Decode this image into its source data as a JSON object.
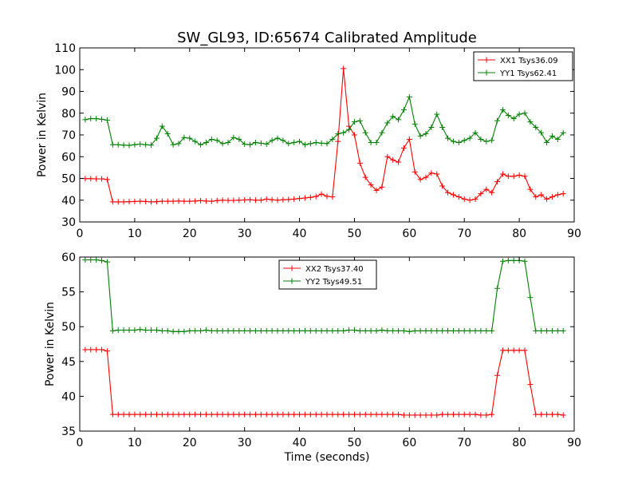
{
  "title": "SW_GL93, ID:65674 Calibrated Amplitude",
  "colors": {
    "red": "#ff0000",
    "green": "#008000"
  },
  "chart_data": [
    {
      "type": "line",
      "xlabel": "",
      "ylabel": "Power in Kelvin",
      "xlim": [
        0,
        90
      ],
      "ylim": [
        30,
        110
      ],
      "xticks": [
        0,
        10,
        20,
        30,
        40,
        50,
        60,
        70,
        80,
        90
      ],
      "yticks": [
        30,
        40,
        50,
        60,
        70,
        80,
        90,
        100,
        110
      ],
      "grid": false,
      "legend_position": "top-right",
      "x": [
        1,
        2,
        3,
        4,
        5,
        6,
        7,
        8,
        9,
        10,
        11,
        12,
        13,
        14,
        15,
        16,
        17,
        18,
        19,
        20,
        21,
        22,
        23,
        24,
        25,
        26,
        27,
        28,
        29,
        30,
        31,
        32,
        33,
        34,
        35,
        36,
        37,
        38,
        39,
        40,
        41,
        42,
        43,
        44,
        45,
        46,
        47,
        48,
        49,
        50,
        51,
        52,
        53,
        54,
        55,
        56,
        57,
        58,
        59,
        60,
        61,
        62,
        63,
        64,
        65,
        66,
        67,
        68,
        69,
        70,
        71,
        72,
        73,
        74,
        75,
        76,
        77,
        78,
        79,
        80,
        81,
        82,
        83,
        84,
        85,
        86,
        87,
        88
      ],
      "series": [
        {
          "name": "XX1 Tsys36.09",
          "color": "#ff0000",
          "values": [
            49.9,
            49.9,
            49.8,
            49.8,
            49.5,
            39.2,
            39.2,
            39.2,
            39.3,
            39.4,
            39.5,
            39.4,
            39.2,
            39.3,
            39.5,
            39.5,
            39.5,
            39.6,
            39.5,
            39.5,
            39.6,
            39.8,
            39.6,
            39.5,
            39.8,
            40.0,
            39.9,
            39.9,
            40.0,
            40.1,
            40.2,
            40.0,
            40.0,
            40.5,
            40.2,
            40.0,
            40.2,
            40.3,
            40.5,
            40.8,
            41.0,
            41.3,
            41.7,
            42.8,
            41.8,
            41.5,
            67.0,
            100.5,
            74.0,
            70.0,
            57.0,
            50.5,
            47.0,
            44.5,
            46.0,
            60.0,
            58.5,
            57.5,
            64.0,
            68.0,
            53.0,
            49.5,
            50.5,
            52.5,
            52.0,
            46.5,
            43.5,
            42.5,
            41.5,
            40.5,
            40.0,
            40.5,
            43.0,
            45.0,
            43.5,
            48.5,
            52.0,
            51.0,
            51.0,
            51.5,
            51.0,
            45.0,
            41.5,
            42.5,
            40.5,
            41.5,
            42.5,
            43.0
          ]
        },
        {
          "name": "YY1 Tsys62.41",
          "color": "#008000",
          "values": [
            77.0,
            77.5,
            77.5,
            77.2,
            76.8,
            65.5,
            65.5,
            65.3,
            65.2,
            65.5,
            65.8,
            65.5,
            65.3,
            68.5,
            74.0,
            70.5,
            65.5,
            66.0,
            68.8,
            68.5,
            67.0,
            65.5,
            66.5,
            68.0,
            67.5,
            66.0,
            66.5,
            68.8,
            68.0,
            65.8,
            65.5,
            66.5,
            66.2,
            65.8,
            67.5,
            68.5,
            67.5,
            66.0,
            66.5,
            67.0,
            65.5,
            66.0,
            66.5,
            66.2,
            66.0,
            68.0,
            70.5,
            71.0,
            72.5,
            76.0,
            76.5,
            71.0,
            66.5,
            66.5,
            71.0,
            75.5,
            78.5,
            77.0,
            81.5,
            87.5,
            75.0,
            69.5,
            70.5,
            73.5,
            79.5,
            73.5,
            68.5,
            67.0,
            66.5,
            67.5,
            68.5,
            71.0,
            68.0,
            67.0,
            67.5,
            76.5,
            81.5,
            79.0,
            77.5,
            79.5,
            80.0,
            76.0,
            73.5,
            71.0,
            66.5,
            69.5,
            68.0,
            71.0
          ]
        }
      ]
    },
    {
      "type": "line",
      "xlabel": "Time (seconds)",
      "ylabel": "Power in Kelvin",
      "xlim": [
        0,
        90
      ],
      "ylim": [
        35,
        60
      ],
      "xticks": [
        0,
        10,
        20,
        30,
        40,
        50,
        60,
        70,
        80,
        90
      ],
      "yticks": [
        35,
        40,
        45,
        50,
        55,
        60
      ],
      "grid": false,
      "legend_position": "top-center",
      "x": [
        1,
        2,
        3,
        4,
        5,
        6,
        7,
        8,
        9,
        10,
        11,
        12,
        13,
        14,
        15,
        16,
        17,
        18,
        19,
        20,
        21,
        22,
        23,
        24,
        25,
        26,
        27,
        28,
        29,
        30,
        31,
        32,
        33,
        34,
        35,
        36,
        37,
        38,
        39,
        40,
        41,
        42,
        43,
        44,
        45,
        46,
        47,
        48,
        49,
        50,
        51,
        52,
        53,
        54,
        55,
        56,
        57,
        58,
        59,
        60,
        61,
        62,
        63,
        64,
        65,
        66,
        67,
        68,
        69,
        70,
        71,
        72,
        73,
        74,
        75,
        76,
        77,
        78,
        79,
        80,
        81,
        82,
        83,
        84,
        85,
        86,
        87,
        88
      ],
      "series": [
        {
          "name": "XX2 Tsys37.40",
          "color": "#ff0000",
          "values": [
            46.7,
            46.7,
            46.7,
            46.7,
            46.5,
            37.4,
            37.4,
            37.4,
            37.4,
            37.4,
            37.4,
            37.4,
            37.4,
            37.4,
            37.4,
            37.4,
            37.4,
            37.4,
            37.4,
            37.4,
            37.4,
            37.4,
            37.4,
            37.4,
            37.4,
            37.4,
            37.4,
            37.4,
            37.4,
            37.4,
            37.4,
            37.4,
            37.4,
            37.4,
            37.4,
            37.4,
            37.4,
            37.4,
            37.4,
            37.4,
            37.4,
            37.4,
            37.4,
            37.4,
            37.4,
            37.4,
            37.4,
            37.4,
            37.4,
            37.4,
            37.4,
            37.4,
            37.4,
            37.4,
            37.4,
            37.4,
            37.4,
            37.4,
            37.3,
            37.3,
            37.3,
            37.3,
            37.3,
            37.3,
            37.3,
            37.4,
            37.4,
            37.4,
            37.4,
            37.4,
            37.4,
            37.4,
            37.3,
            37.3,
            37.4,
            43.0,
            46.6,
            46.6,
            46.6,
            46.6,
            46.6,
            41.7,
            37.4,
            37.4,
            37.4,
            37.4,
            37.4,
            37.3
          ]
        },
        {
          "name": "YY2 Tsys49.51",
          "color": "#008000",
          "values": [
            59.6,
            59.6,
            59.6,
            59.5,
            59.3,
            49.4,
            49.5,
            49.5,
            49.5,
            49.5,
            49.6,
            49.5,
            49.5,
            49.5,
            49.4,
            49.4,
            49.3,
            49.3,
            49.3,
            49.4,
            49.4,
            49.4,
            49.5,
            49.4,
            49.4,
            49.4,
            49.4,
            49.4,
            49.4,
            49.4,
            49.4,
            49.4,
            49.4,
            49.4,
            49.4,
            49.4,
            49.4,
            49.4,
            49.4,
            49.4,
            49.4,
            49.4,
            49.4,
            49.4,
            49.4,
            49.4,
            49.4,
            49.4,
            49.5,
            49.5,
            49.4,
            49.4,
            49.4,
            49.4,
            49.5,
            49.4,
            49.4,
            49.4,
            49.4,
            49.3,
            49.4,
            49.4,
            49.4,
            49.4,
            49.4,
            49.4,
            49.4,
            49.4,
            49.4,
            49.4,
            49.4,
            49.4,
            49.4,
            49.4,
            49.4,
            55.5,
            59.4,
            59.5,
            59.5,
            59.5,
            59.4,
            54.2,
            49.4,
            49.4,
            49.4,
            49.4,
            49.4,
            49.4
          ]
        }
      ]
    }
  ]
}
